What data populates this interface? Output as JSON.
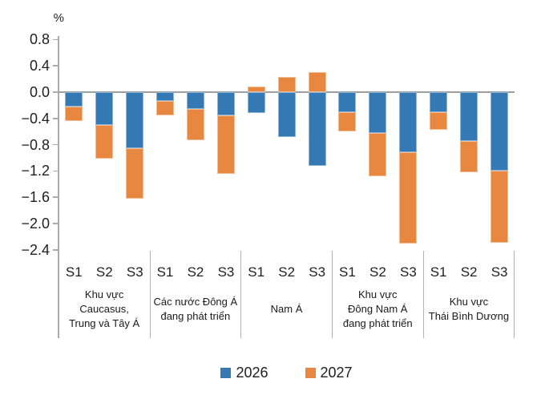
{
  "chart_data": {
    "type": "bar",
    "stacked": true,
    "grid": false,
    "unit_label": "%",
    "y_axis": {
      "min": -2.4,
      "max": 0.8,
      "step": 0.4,
      "tick_labels": [
        "0.8",
        "0.4",
        "0.0",
        "−0.4",
        "−0.8",
        "−1.2",
        "−1.6",
        "−2.0",
        "−2.4"
      ]
    },
    "series": [
      {
        "name": "2026",
        "color": "#3478B4"
      },
      {
        "name": "2027",
        "color": "#E8873F"
      }
    ],
    "legend_position": "bottom",
    "groups": [
      {
        "label_lines": [
          "Khu vực",
          "Caucasus,",
          "Trung và Tây Á"
        ],
        "bars": [
          {
            "label": "S1",
            "values": [
              -0.22,
              -0.22
            ]
          },
          {
            "label": "S2",
            "values": [
              -0.5,
              -0.51
            ]
          },
          {
            "label": "S3",
            "values": [
              -0.85,
              -0.77
            ]
          }
        ]
      },
      {
        "label_lines": [
          "Các nước Đông Á",
          "đang phát triển"
        ],
        "bars": [
          {
            "label": "S1",
            "values": [
              -0.14,
              -0.21
            ]
          },
          {
            "label": "S2",
            "values": [
              -0.25,
              -0.48
            ]
          },
          {
            "label": "S3",
            "values": [
              -0.35,
              -0.9
            ]
          }
        ]
      },
      {
        "label_lines": [
          "Nam Á"
        ],
        "bars": [
          {
            "label": "S1",
            "values": [
              -0.32,
              0.08
            ]
          },
          {
            "label": "S2",
            "values": [
              -0.68,
              0.23
            ]
          },
          {
            "label": "S3",
            "values": [
              -1.12,
              0.3
            ]
          }
        ]
      },
      {
        "label_lines": [
          "Khu vực",
          "Đông Nam Á",
          "đang phát triển"
        ],
        "bars": [
          {
            "label": "S1",
            "values": [
              -0.3,
              -0.3
            ]
          },
          {
            "label": "S2",
            "values": [
              -0.62,
              -0.66
            ]
          },
          {
            "label": "S3",
            "values": [
              -0.91,
              -1.39
            ]
          }
        ]
      },
      {
        "label_lines": [
          "Khu vực",
          "Thái Bình Dương"
        ],
        "bars": [
          {
            "label": "S1",
            "values": [
              -0.3,
              -0.27
            ]
          },
          {
            "label": "S2",
            "values": [
              -0.74,
              -0.48
            ]
          },
          {
            "label": "S3",
            "values": [
              -1.2,
              -1.09
            ]
          }
        ]
      }
    ]
  },
  "colors": {
    "axis": "#ABABAB",
    "zero_line": "#9E9E9E",
    "separator": "#B3B3B3",
    "text": "#1F1F1F"
  }
}
